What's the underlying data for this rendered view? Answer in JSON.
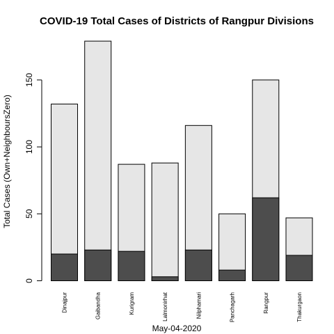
{
  "chart_data": {
    "type": "bar",
    "stacked": false,
    "overlay": true,
    "title": "COVID-19 Total Cases of Districts of Rangpur Divisions",
    "xlabel": "May-04-2020",
    "ylabel": "Total Cases (Own+NeighboursZero)",
    "ylim": [
      0,
      185
    ],
    "yticks": [
      0,
      50,
      100,
      150
    ],
    "grid": false,
    "categories": [
      "Dinajpur",
      "Gaibandha",
      "Kurigram",
      "Lalmonirhat",
      "Nilphamari",
      "Panchagarh",
      "Rangpur",
      "Thakurgaon"
    ],
    "series": [
      {
        "values": [
          132,
          179,
          87,
          88,
          116,
          50,
          150,
          47
        ],
        "color": "#e6e6e6"
      },
      {
        "values": [
          20,
          23,
          22,
          3,
          23,
          8,
          62,
          19
        ],
        "color": "#4d4d4d"
      }
    ]
  }
}
